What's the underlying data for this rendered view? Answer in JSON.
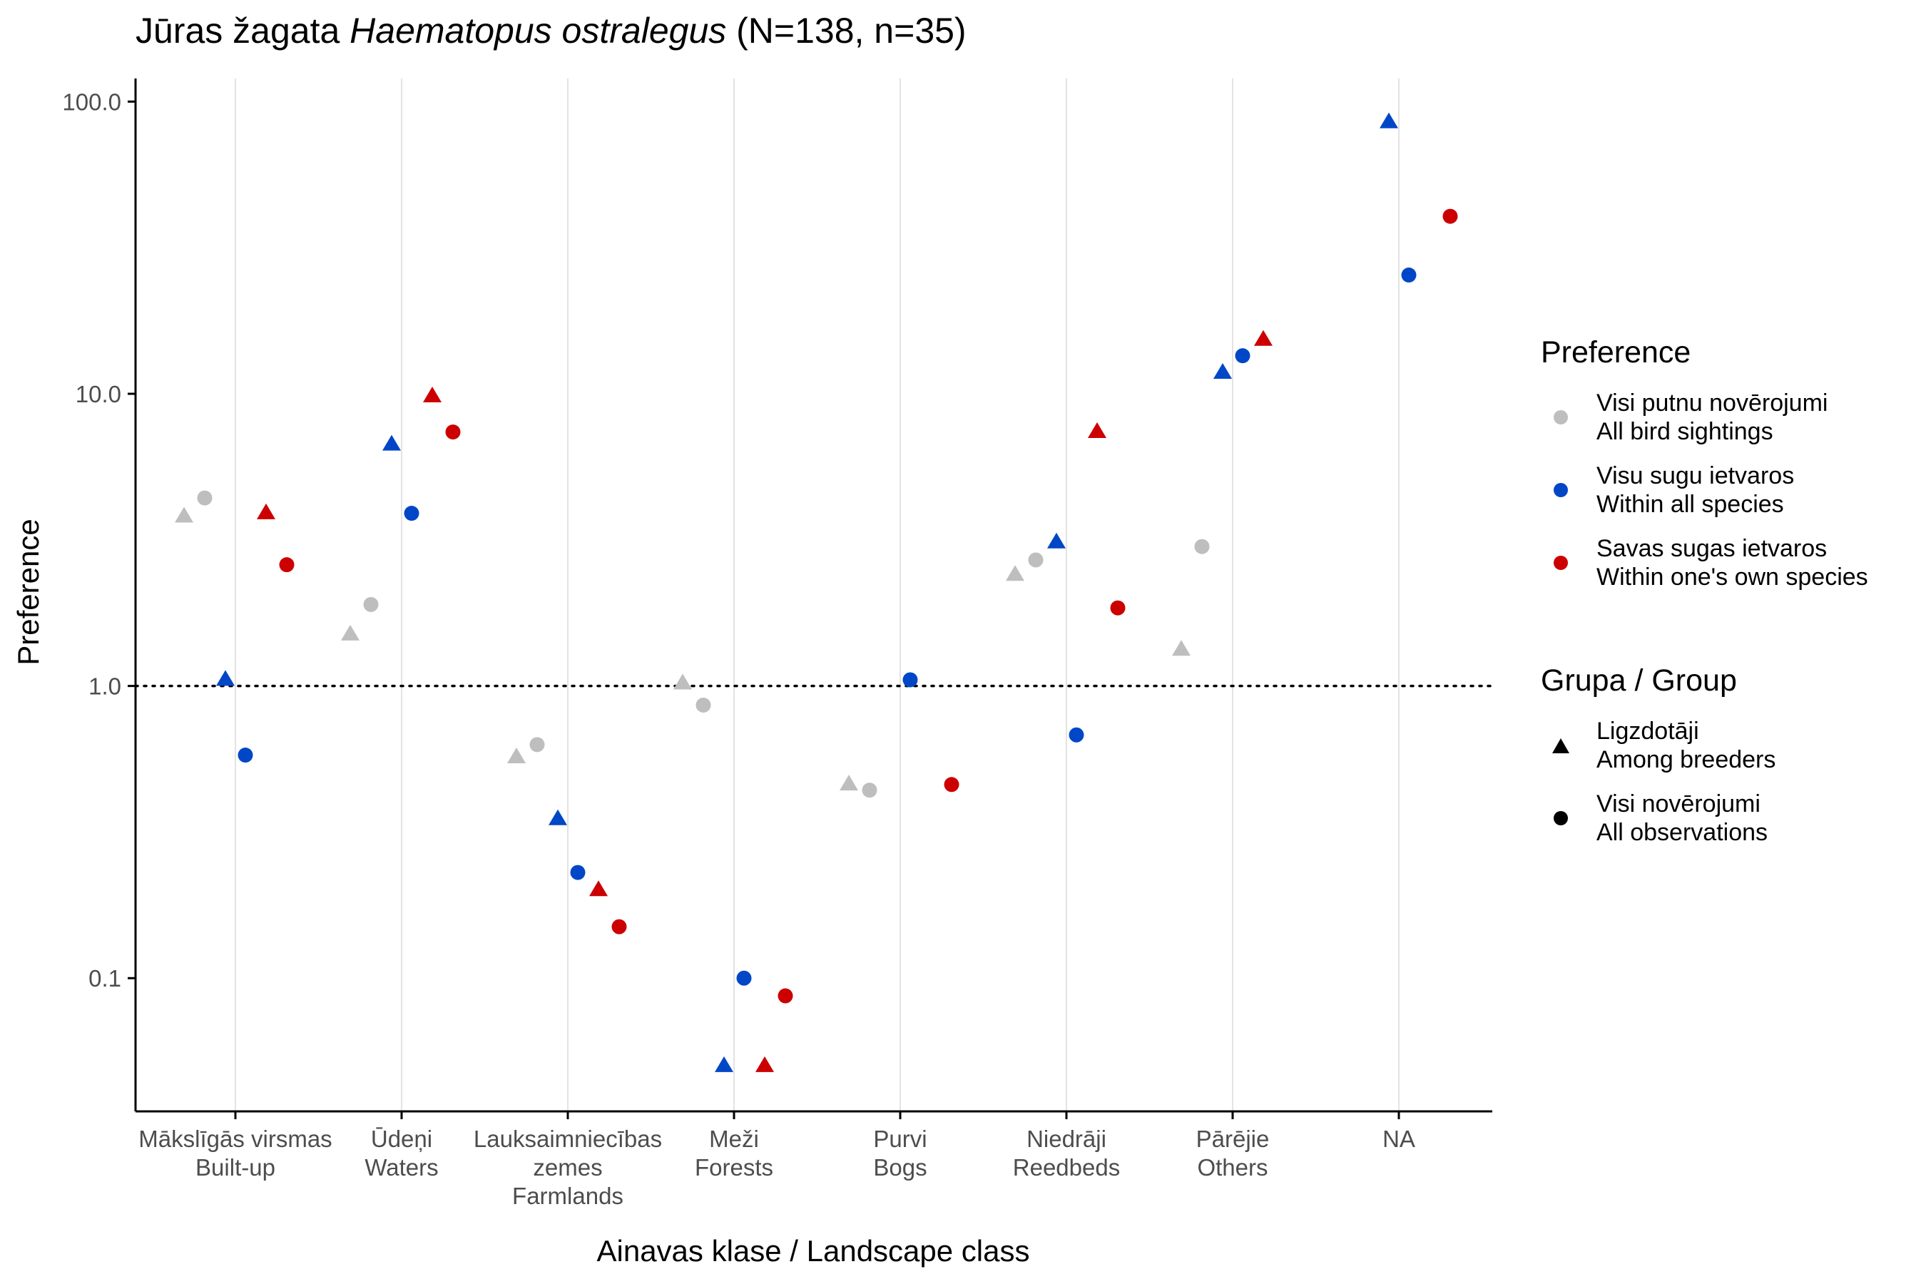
{
  "title": {
    "prefix": "Jūras žagata ",
    "species": "Haematopus ostralegus",
    "suffix": " (N=138, n=35)"
  },
  "x_axis_title": "Ainavas klase / Landscape class",
  "y_axis_title": "Preference",
  "legend_preference": {
    "title": "Preference",
    "items": [
      {
        "line1": "Visi putnu novērojumi",
        "line2": "All bird sightings",
        "color": "#BEBEBE"
      },
      {
        "line1": "Visu sugu ietvaros",
        "line2": "Within all species",
        "color": "#0047C7"
      },
      {
        "line1": "Savas sugas ietvaros",
        "line2": "Within one's own species",
        "color": "#CC0000"
      }
    ]
  },
  "legend_group": {
    "title": "Grupa / Group",
    "items": [
      {
        "line1": "Ligzdotāji",
        "line2": "Among breeders",
        "shape": "triangle"
      },
      {
        "line1": "Visi novērojumi",
        "line2": "All observations",
        "shape": "circle"
      }
    ]
  },
  "chart_data": {
    "type": "scatter",
    "y_scale": "log10",
    "ylim": [
      0.035,
      120
    ],
    "y_ticks": [
      {
        "value": 0.1,
        "label": "0.1"
      },
      {
        "value": 1,
        "label": "1.0"
      },
      {
        "value": 10,
        "label": "10.0"
      },
      {
        "value": 100,
        "label": "100.0"
      }
    ],
    "reference_line": 1.0,
    "categories": [
      {
        "lines": [
          "Mākslīgās virsmas",
          "Built-up"
        ]
      },
      {
        "lines": [
          "Ūdeņi",
          "Waters"
        ]
      },
      {
        "lines": [
          "Lauksaimniecības",
          "zemes",
          "Farmlands"
        ]
      },
      {
        "lines": [
          "Meži",
          "Forests"
        ]
      },
      {
        "lines": [
          "Purvi",
          "Bogs"
        ]
      },
      {
        "lines": [
          "Niedrāji",
          "Reedbeds"
        ]
      },
      {
        "lines": [
          "Pārējie",
          "Others"
        ]
      },
      {
        "lines": [
          "NA"
        ]
      }
    ],
    "preference_colors": {
      "Visi putnu novērojumi": "#BEBEBE",
      "Visu sugu ietvaros": "#0047C7",
      "Savas sugas ietvaros": "#CC0000"
    },
    "series": [
      {
        "preference": "Visi putnu novērojumi",
        "group": "Ligzdotāji",
        "shape": "triangle",
        "values": [
          3.8,
          1.5,
          0.57,
          1.02,
          0.46,
          2.4,
          1.33,
          null
        ]
      },
      {
        "preference": "Visi putnu novērojumi",
        "group": "Visi novērojumi",
        "shape": "circle",
        "values": [
          4.4,
          1.9,
          0.63,
          0.86,
          0.44,
          2.7,
          3.0,
          null
        ]
      },
      {
        "preference": "Visu sugu ietvaros",
        "group": "Ligzdotāji",
        "shape": "triangle",
        "values": [
          1.05,
          6.7,
          0.35,
          0.05,
          null,
          3.1,
          11.8,
          85
        ]
      },
      {
        "preference": "Visu sugu ietvaros",
        "group": "Visi novērojumi",
        "shape": "circle",
        "values": [
          0.58,
          3.9,
          0.23,
          0.1,
          1.05,
          0.68,
          13.5,
          25.5
        ]
      },
      {
        "preference": "Savas sugas ietvaros",
        "group": "Ligzdotāji",
        "shape": "triangle",
        "values": [
          3.9,
          9.8,
          0.2,
          0.05,
          null,
          7.4,
          15.3,
          null
        ]
      },
      {
        "preference": "Savas sugas ietvaros",
        "group": "Visi novērojumi",
        "shape": "circle",
        "values": [
          2.6,
          7.4,
          0.15,
          0.087,
          0.46,
          1.85,
          null,
          40.5
        ]
      }
    ]
  }
}
